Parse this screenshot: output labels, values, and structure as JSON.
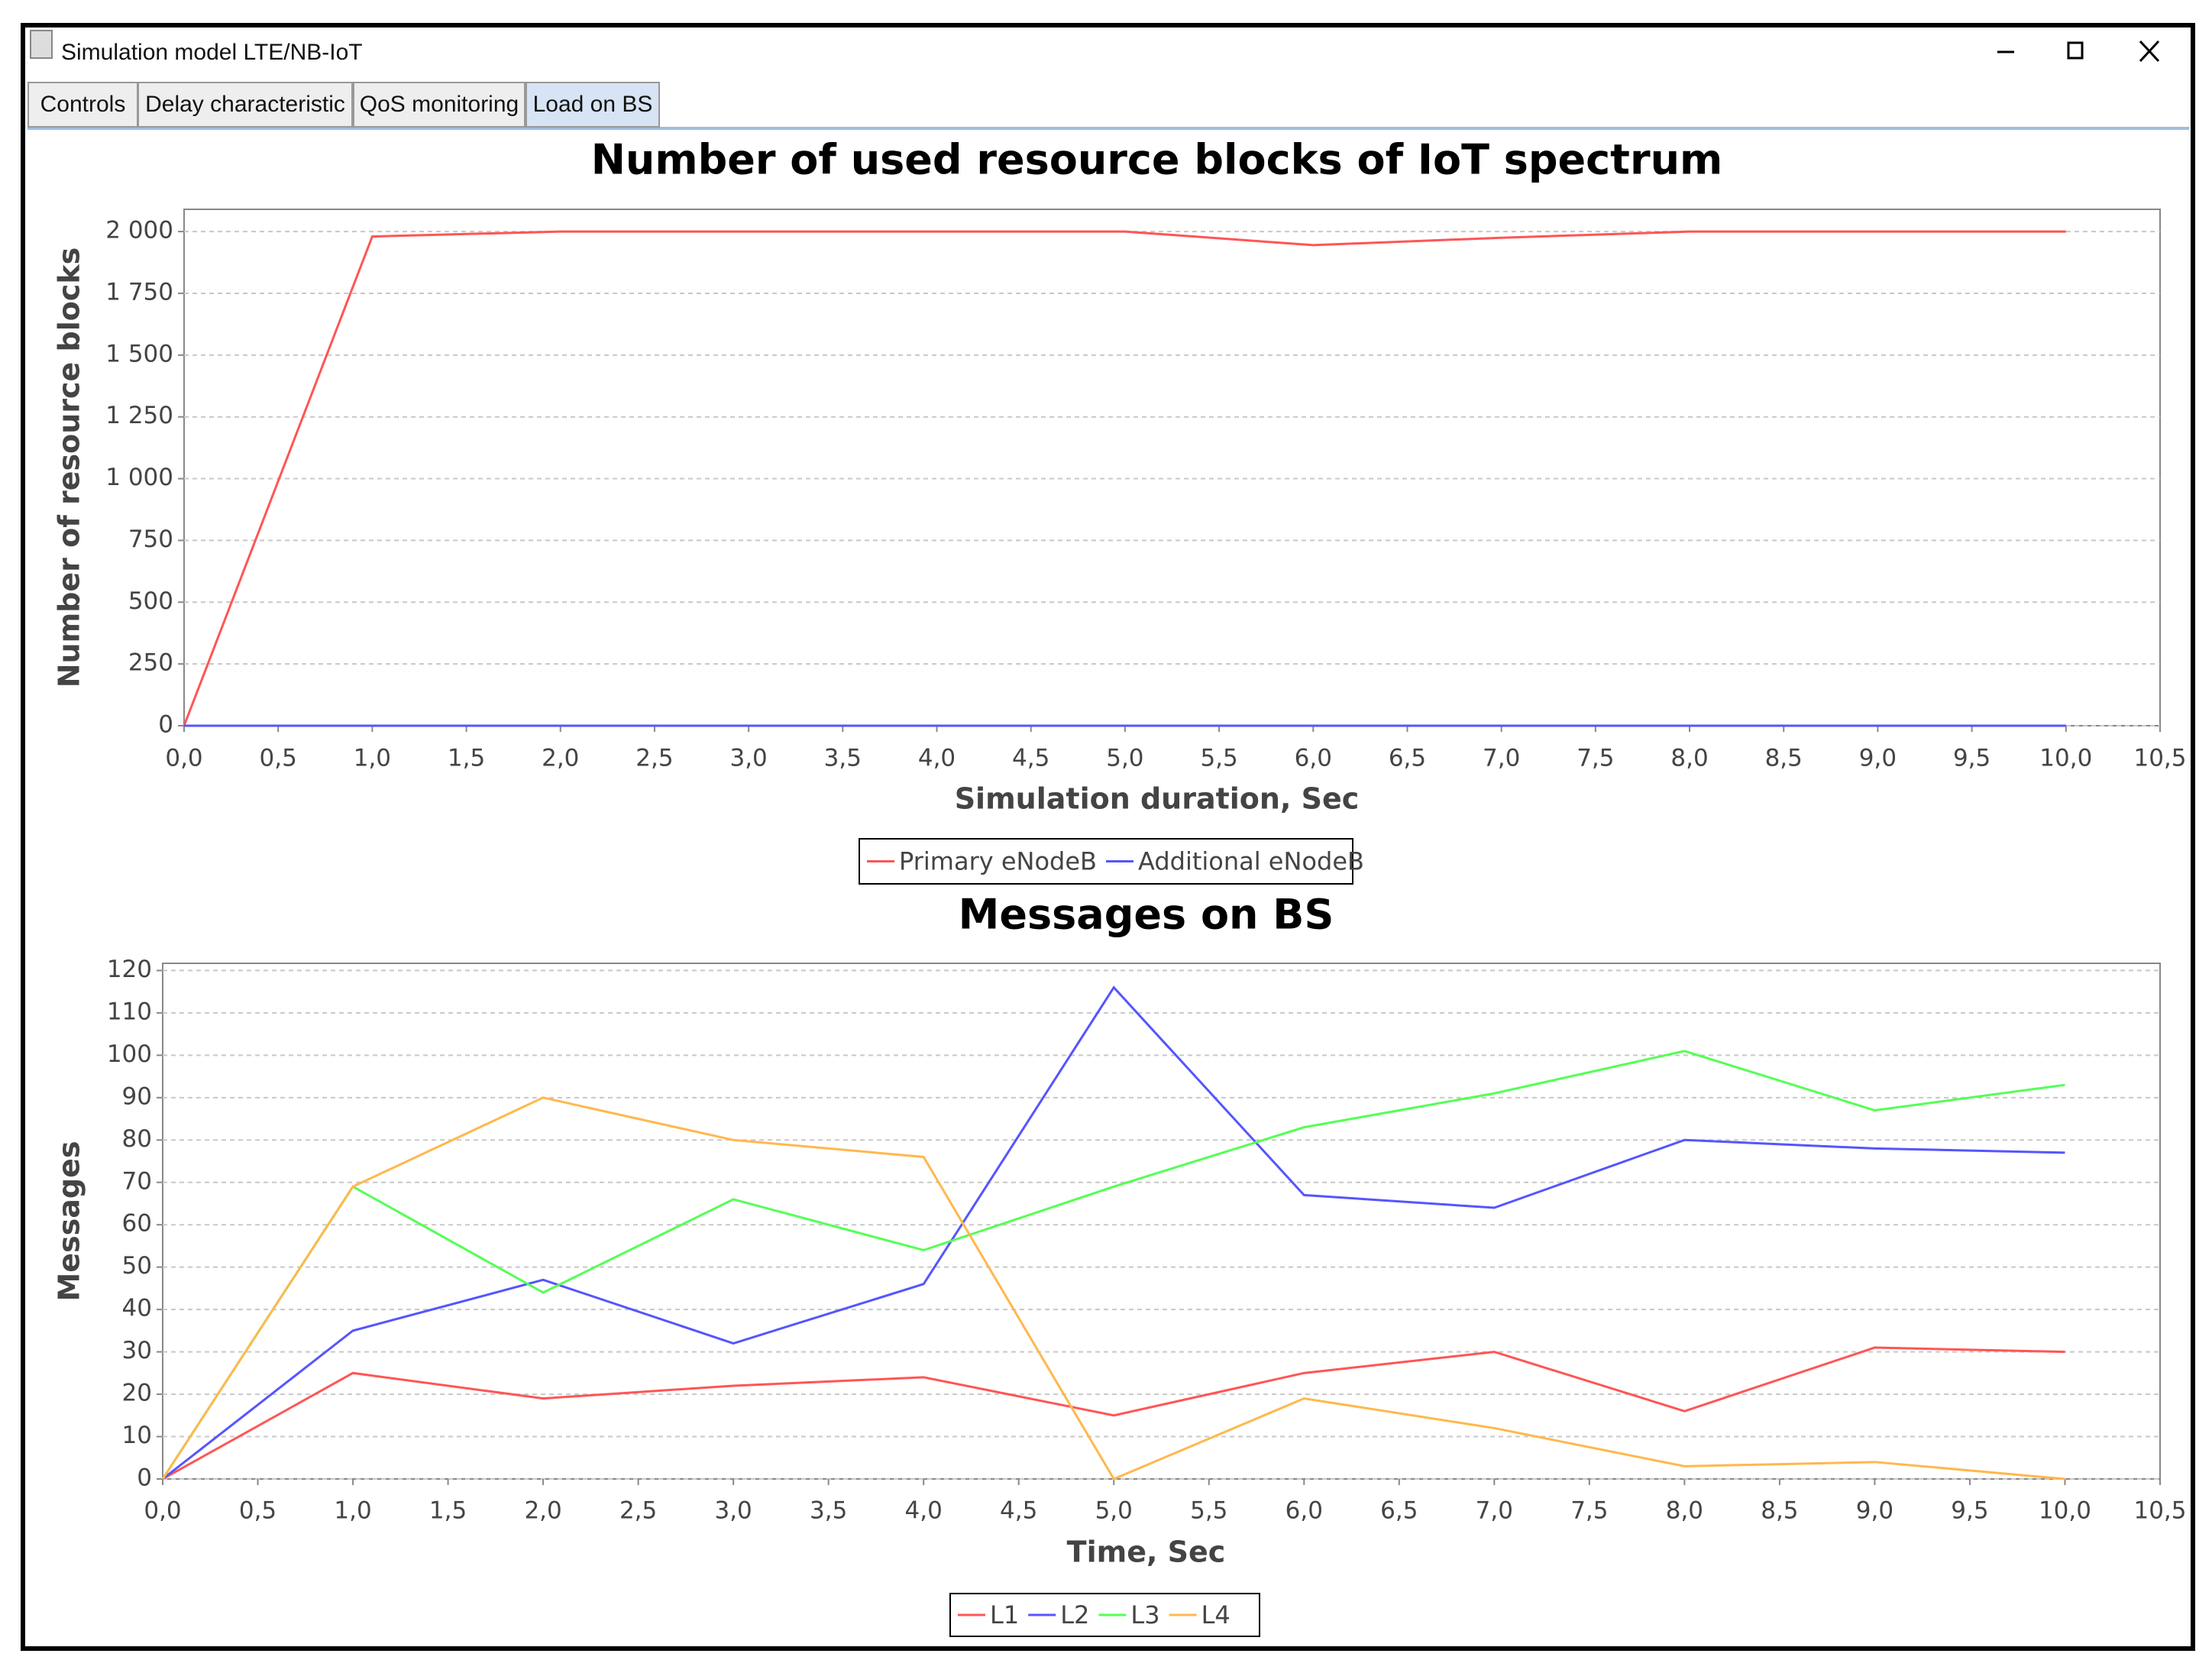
{
  "window": {
    "title": "Simulation model LTE/NB-IoT",
    "tabs": [
      "Controls",
      "Delay characteristic",
      "QoS monitoring",
      "Load on BS"
    ],
    "active_tab": 3
  },
  "chart_data": [
    {
      "type": "line",
      "title": "Number of used resource blocks of IoT spectrum",
      "x_label": "Simulation duration, Sec",
      "y_label": "Number of resource blocks",
      "x": [
        0,
        1,
        2,
        3,
        4,
        5,
        6,
        7,
        8,
        9,
        10
      ],
      "series": [
        {
          "name": "Primary eNodeB",
          "color": "#ff5555",
          "values": [
            0,
            1980,
            2000,
            2000,
            2000,
            2000,
            1945,
            1975,
            2000,
            2000,
            2000
          ]
        },
        {
          "name": "Additional eNodeB",
          "color": "#5555ff",
          "values": [
            0,
            0,
            0,
            0,
            0,
            0,
            0,
            0,
            0,
            0,
            0
          ]
        }
      ],
      "xlim": [
        0,
        10.5
      ],
      "xticks": [
        {
          "value": 0,
          "label": "0,0"
        },
        {
          "value": 0.5,
          "label": "0,5"
        },
        {
          "value": 1,
          "label": "1,0"
        },
        {
          "value": 1.5,
          "label": "1,5"
        },
        {
          "value": 2,
          "label": "2,0"
        },
        {
          "value": 2.5,
          "label": "2,5"
        },
        {
          "value": 3,
          "label": "3,0"
        },
        {
          "value": 3.5,
          "label": "3,5"
        },
        {
          "value": 4,
          "label": "4,0"
        },
        {
          "value": 4.5,
          "label": "4,5"
        },
        {
          "value": 5,
          "label": "5,0"
        },
        {
          "value": 5.5,
          "label": "5,5"
        },
        {
          "value": 6,
          "label": "6,0"
        },
        {
          "value": 6.5,
          "label": "6,5"
        },
        {
          "value": 7,
          "label": "7,0"
        },
        {
          "value": 7.5,
          "label": "7,5"
        },
        {
          "value": 8,
          "label": "8,0"
        },
        {
          "value": 8.5,
          "label": "8,5"
        },
        {
          "value": 9,
          "label": "9,0"
        },
        {
          "value": 9.5,
          "label": "9,5"
        },
        {
          "value": 10,
          "label": "10,0"
        },
        {
          "value": 10.5,
          "label": "10,5"
        }
      ],
      "ylim": [
        0,
        2090
      ],
      "yticks": [
        0,
        250,
        500,
        750,
        {
          "value": 1000,
          "label": "1 000"
        },
        {
          "value": 1250,
          "label": "1 250"
        },
        {
          "value": 1500,
          "label": "1 500"
        },
        {
          "value": 1750,
          "label": "1 750"
        },
        {
          "value": 2000,
          "label": "2 000"
        }
      ],
      "grid": true,
      "legend": "bottom"
    },
    {
      "type": "line",
      "title": "Messages on BS",
      "x_label": "Time, Sec",
      "y_label": "Messages",
      "x": [
        0,
        1,
        2,
        3,
        4,
        5,
        6,
        7,
        8,
        9,
        10
      ],
      "series": [
        {
          "name": "L1",
          "color": "#ff5555",
          "values": [
            0,
            25,
            19,
            22,
            24,
            15,
            25,
            30,
            16,
            31,
            30
          ]
        },
        {
          "name": "L2",
          "color": "#5555ff",
          "values": [
            0,
            35,
            47,
            32,
            46,
            116,
            67,
            64,
            80,
            78,
            77
          ]
        },
        {
          "name": "L3",
          "color": "#55ff55",
          "values": [
            0,
            69,
            44,
            66,
            54,
            69,
            83,
            91,
            101,
            87,
            93
          ]
        },
        {
          "name": "L4",
          "color": "#ffb84d",
          "values": [
            0,
            69,
            90,
            80,
            76,
            0,
            19,
            12,
            3,
            4,
            0
          ]
        }
      ],
      "xlim": [
        0,
        10.5
      ],
      "xticks": [
        {
          "value": 0,
          "label": "0,0"
        },
        {
          "value": 0.5,
          "label": "0,5"
        },
        {
          "value": 1,
          "label": "1,0"
        },
        {
          "value": 1.5,
          "label": "1,5"
        },
        {
          "value": 2,
          "label": "2,0"
        },
        {
          "value": 2.5,
          "label": "2,5"
        },
        {
          "value": 3,
          "label": "3,0"
        },
        {
          "value": 3.5,
          "label": "3,5"
        },
        {
          "value": 4,
          "label": "4,0"
        },
        {
          "value": 4.5,
          "label": "4,5"
        },
        {
          "value": 5,
          "label": "5,0"
        },
        {
          "value": 5.5,
          "label": "5,5"
        },
        {
          "value": 6,
          "label": "6,0"
        },
        {
          "value": 6.5,
          "label": "6,5"
        },
        {
          "value": 7,
          "label": "7,0"
        },
        {
          "value": 7.5,
          "label": "7,5"
        },
        {
          "value": 8,
          "label": "8,0"
        },
        {
          "value": 8.5,
          "label": "8,5"
        },
        {
          "value": 9,
          "label": "9,0"
        },
        {
          "value": 9.5,
          "label": "9,5"
        },
        {
          "value": 10,
          "label": "10,0"
        },
        {
          "value": 10.5,
          "label": "10,5"
        }
      ],
      "ylim": [
        0,
        121.7
      ],
      "yticks": [
        0,
        10,
        20,
        30,
        40,
        50,
        60,
        70,
        80,
        90,
        100,
        110,
        120
      ],
      "grid": true,
      "legend": "bottom"
    }
  ]
}
